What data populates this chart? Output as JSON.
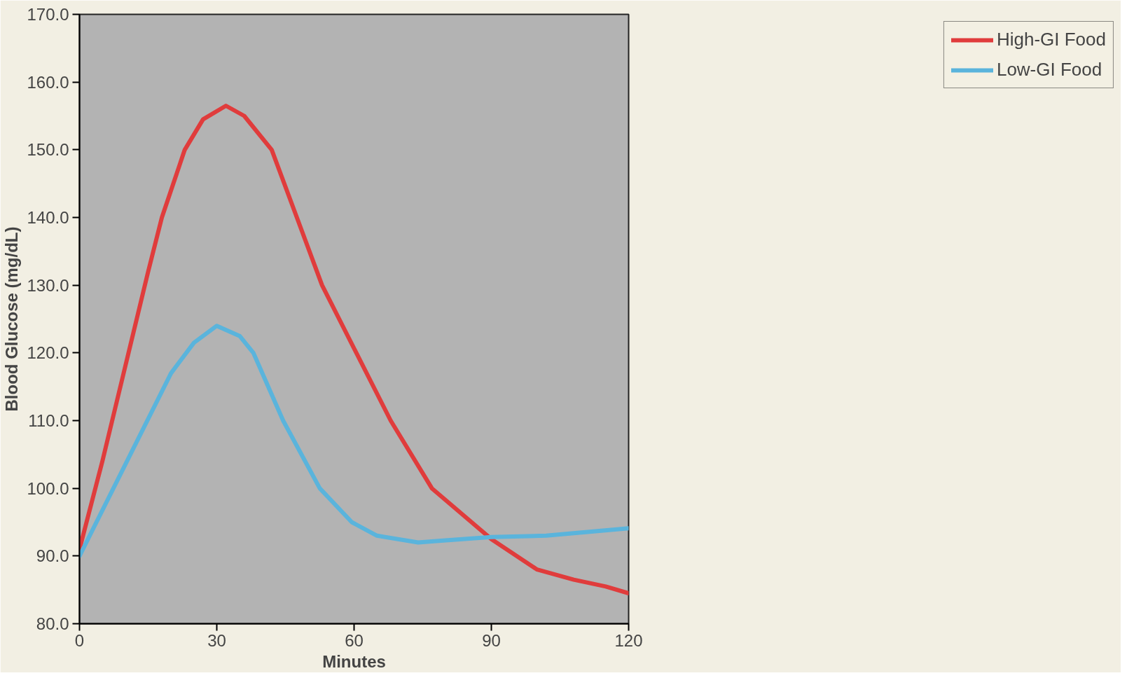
{
  "chart_data": {
    "type": "line",
    "xlabel": "Minutes",
    "ylabel": "Blood Glucose (mg/dL)",
    "xlim": [
      0,
      120
    ],
    "xticks": [
      0,
      30,
      60,
      90,
      120
    ],
    "ylim": [
      80,
      170
    ],
    "yticks": [
      {
        "value": 80,
        "label": "80.0"
      },
      {
        "value": 90,
        "label": "90.0"
      },
      {
        "value": 100,
        "label": "100.0"
      },
      {
        "value": 110,
        "label": "110.0"
      },
      {
        "value": 120,
        "label": "120.0"
      },
      {
        "value": 130,
        "label": "130.0"
      },
      {
        "value": 140,
        "label": "140.0"
      },
      {
        "value": 150,
        "label": "150.0"
      },
      {
        "value": 160,
        "label": "160.0"
      },
      {
        "value": 170,
        "label": "170.0"
      }
    ],
    "grid": false,
    "legend": "right",
    "marker": "none",
    "line_style": "solid",
    "series": [
      {
        "name": "High-GI Food",
        "color": "#e03c3c",
        "x": [
          0,
          5,
          10,
          15,
          18,
          23,
          27,
          32,
          36,
          42,
          47.5,
          53,
          60.5,
          68,
          77,
          90,
          100,
          108,
          115,
          120
        ],
        "values": [
          91,
          104,
          118,
          132,
          140,
          150,
          154.5,
          156.5,
          155,
          150,
          140,
          130,
          120,
          110,
          100,
          92.5,
          88,
          86.5,
          85.5,
          84.5
        ]
      },
      {
        "name": "Low-GI Food",
        "color": "#5ab4dc",
        "x": [
          0,
          10,
          20,
          25,
          30,
          35,
          38,
          44.5,
          52.5,
          59.5,
          65,
          74,
          80,
          90,
          102,
          120
        ],
        "values": [
          90,
          103.5,
          117,
          121.5,
          124,
          122.5,
          120,
          110,
          100,
          95,
          93,
          92,
          92.3,
          92.8,
          93,
          94.1
        ]
      }
    ]
  }
}
